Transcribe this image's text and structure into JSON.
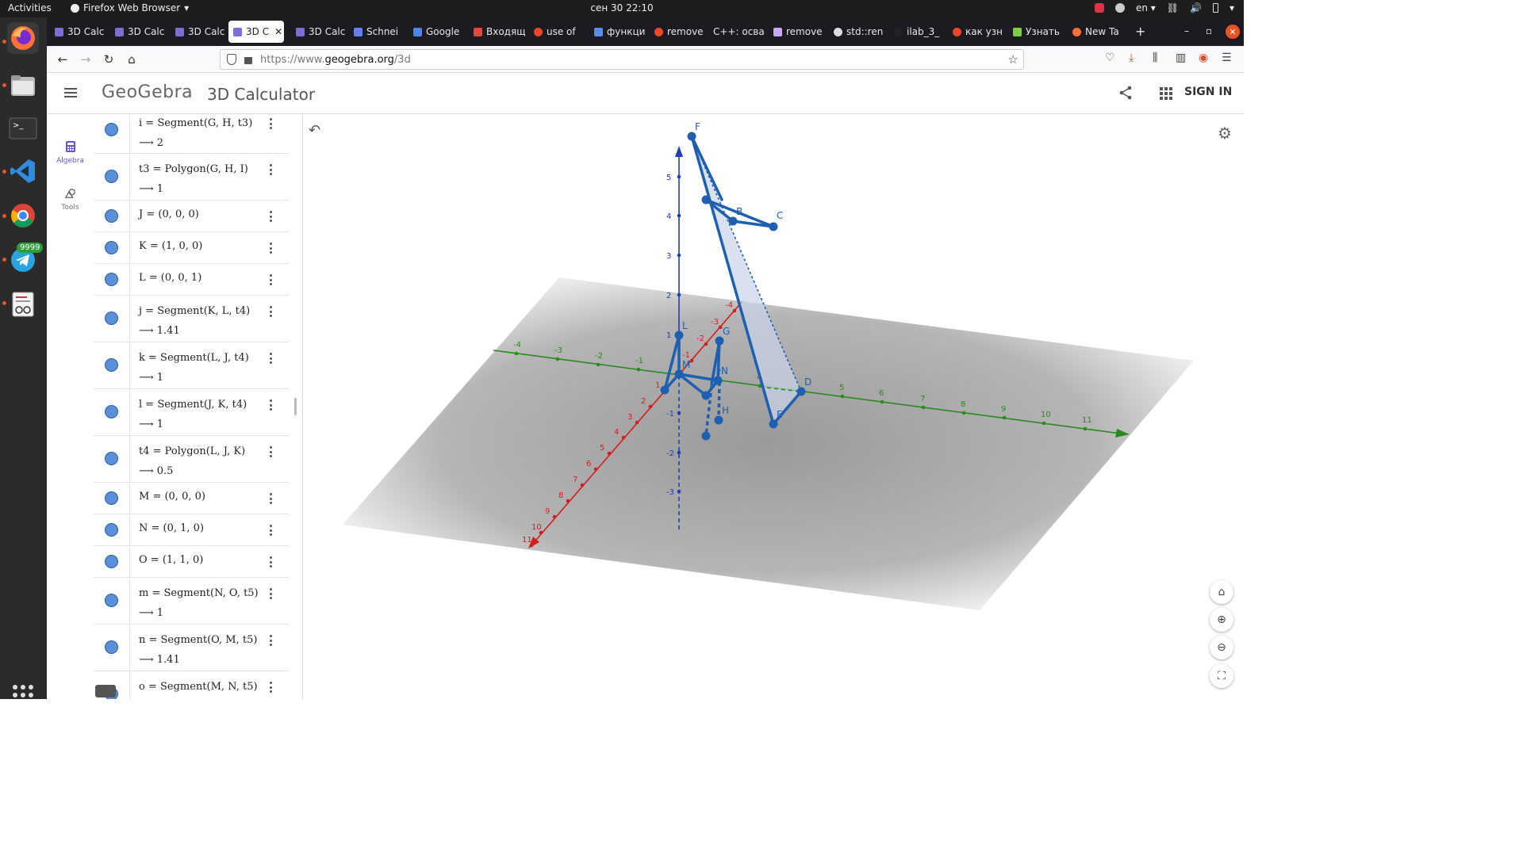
{
  "topbar": {
    "activities": "Activities",
    "app": "Firefox Web Browser",
    "clock": "сен 30  22:10",
    "lang": "en"
  },
  "dock": {
    "telegram_badge": "9999"
  },
  "tabs": [
    {
      "label": "3D Calc",
      "color": "#7b6ed6"
    },
    {
      "label": "3D Calc",
      "color": "#7b6ed6"
    },
    {
      "label": "3D Calc",
      "color": "#7b6ed6"
    },
    {
      "label": "3D C",
      "color": "#7b6ed6",
      "active": true
    },
    {
      "label": "3D Calc",
      "color": "#7b6ed6"
    },
    {
      "label": "Schnei",
      "color": "#6b7ef0"
    },
    {
      "label": "Google",
      "color": "#4f86ec"
    },
    {
      "label": "Входящ",
      "color": "#e8453c"
    },
    {
      "label": "use of",
      "color": "#f0442c"
    },
    {
      "label": "функци",
      "color": "#5a8bf0"
    },
    {
      "label": "remove",
      "color": "#f0442c"
    },
    {
      "label": "C++: осва",
      "color": "#444444"
    },
    {
      "label": "remove",
      "color": "#c9a9f5"
    },
    {
      "label": "std::ren",
      "color": "#dddddd"
    },
    {
      "label": "ilab_3_",
      "color": "#222222"
    },
    {
      "label": "как узн",
      "color": "#f0442c"
    },
    {
      "label": "Узнать",
      "color": "#7dd13c"
    },
    {
      "label": "New Ta",
      "color": "#ff7139"
    }
  ],
  "url": {
    "prefix": "https://www.",
    "host": "geogebra.org",
    "path": "/3d"
  },
  "header": {
    "logo": "GeoGebra",
    "title": "3D Calculator",
    "signin": "SIGN IN"
  },
  "sidenav": {
    "algebra": "Algebra",
    "tools": "Tools"
  },
  "algebra_rows": [
    {
      "def": "i  =  Segment(G, H, t3)",
      "val": "⟶  2"
    },
    {
      "def": "t3  =  Polygon(G, H, I)",
      "val": "⟶  1"
    },
    {
      "def": "J  =  (0, 0, 0)"
    },
    {
      "def": "K  =  (1, 0, 0)"
    },
    {
      "def": "L  =  (0, 0, 1)"
    },
    {
      "def": "j  =  Segment(K, L, t4)",
      "val": "⟶  1.41"
    },
    {
      "def": "k  =  Segment(L, J, t4)",
      "val": "⟶  1"
    },
    {
      "def": "l  =  Segment(J, K, t4)",
      "val": "⟶  1"
    },
    {
      "def": "t4  =  Polygon(L, J, K)",
      "val": "⟶  0.5"
    },
    {
      "def": "M  =  (0, 0, 0)"
    },
    {
      "def": "N  =  (0, 1, 0)"
    },
    {
      "def": "O  =  (1, 1, 0)"
    },
    {
      "def": "m  =  Segment(N, O, t5)",
      "val": "⟶  1"
    },
    {
      "def": "n  =  Segment(O, M, t5)",
      "val": "⟶  1.41"
    },
    {
      "def": "o  =  Segment(M, N, t5)"
    }
  ],
  "axes": {
    "x_ticks": [
      "-4",
      "-3",
      "-2",
      "-1",
      "1",
      "2",
      "3",
      "4",
      "5",
      "6",
      "7",
      "8",
      "9",
      "10",
      "11"
    ],
    "y_ticks": [
      "-4",
      "-3",
      "-2",
      "-1",
      "2",
      "4",
      "5",
      "6",
      "7",
      "8",
      "9",
      "10",
      "11"
    ],
    "z_ticks": [
      "5",
      "4",
      "3",
      "2",
      "1",
      "-1",
      "-2",
      "-3"
    ]
  },
  "points": [
    "F",
    "B",
    "C",
    "L",
    "G",
    "M",
    "N",
    "D",
    "E",
    "H"
  ]
}
